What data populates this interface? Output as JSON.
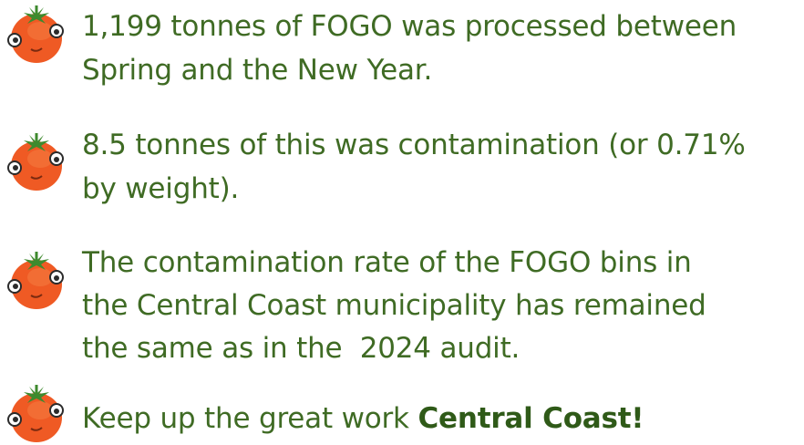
{
  "items": [
    {
      "lines": [
        "1,199 tonnes of FOGO was processed between",
        "Spring and the New Year."
      ]
    },
    {
      "lines": [
        "8.5 tonnes of this was contamination (or 0.71%",
        "by weight)."
      ]
    },
    {
      "lines": [
        "The contamination rate of the FOGO bins in",
        "the Central Coast municipality has remained",
        "the same as in the  2024 audit."
      ]
    },
    {
      "text": "Keep up the great work ",
      "bold": "Central Coast!"
    }
  ]
}
